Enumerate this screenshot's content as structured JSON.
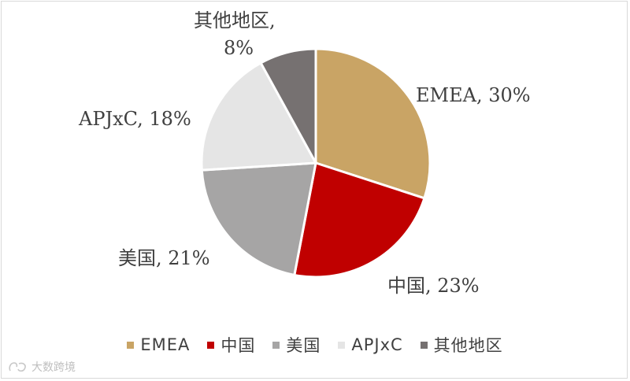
{
  "chart_data": {
    "type": "pie",
    "slices": [
      {
        "name": "EMEA",
        "value": 30,
        "label": "EMEA, 30%",
        "color": "#C9A465"
      },
      {
        "name": "中国",
        "value": 23,
        "label": "中国, 23%",
        "color": "#C00000"
      },
      {
        "name": "美国",
        "value": 21,
        "label": "美国, 21%",
        "color": "#A6A5A5"
      },
      {
        "name": "APJxC",
        "value": 18,
        "label": "APJxC, 18%",
        "color": "#E5E5E5"
      },
      {
        "name": "其他地区",
        "value": 8,
        "label_lines": [
          "其他地区,",
          "8%"
        ],
        "color": "#767171"
      }
    ],
    "legend_position": "bottom"
  },
  "watermark": {
    "text": "大数跨境"
  }
}
